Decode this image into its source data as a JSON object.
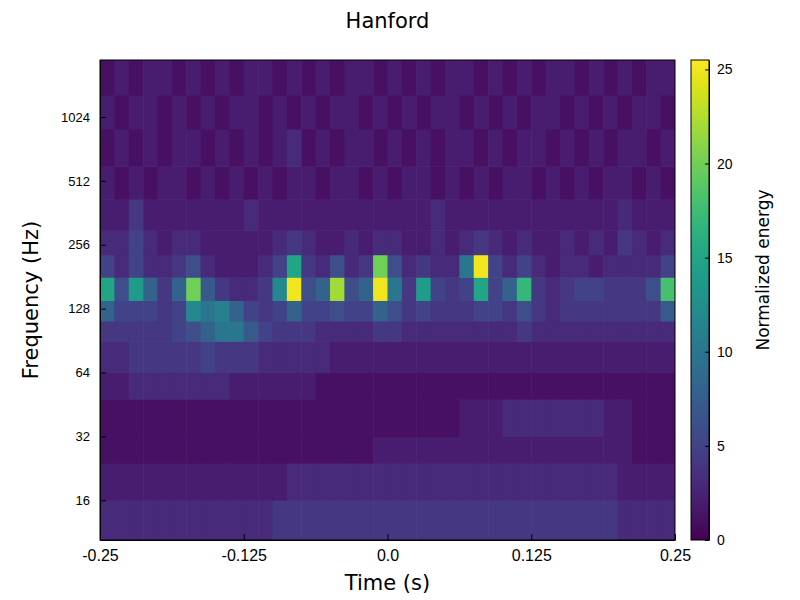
{
  "chart_data": {
    "type": "heatmap",
    "title": "Hanford",
    "x_label": "Time (s)",
    "y_label": "Frequency (Hz)",
    "colorbar_label": "Normalized energy",
    "color": "viridis",
    "log": "y",
    "xlim": [
      -0.25,
      0.25
    ],
    "xticks": [
      -0.25,
      -0.125,
      {
        "value": 0,
        "label": "0.0"
      },
      0.125,
      0.25
    ],
    "ylim": [
      10.4,
      1900
    ],
    "yticks": [
      16,
      32,
      64,
      128,
      256,
      512,
      1024
    ],
    "color_range": [
      0,
      25.5
    ],
    "color_ticks": [
      0,
      5,
      10,
      15,
      20,
      25
    ],
    "x_edges": [
      -0.25,
      -0.2375,
      -0.225,
      -0.2125,
      -0.2,
      -0.1875,
      -0.175,
      -0.1625,
      -0.15,
      -0.1375,
      -0.125,
      -0.1125,
      -0.1,
      -0.0875,
      -0.075,
      -0.0625,
      -0.05,
      -0.0375,
      -0.025,
      -0.0125,
      0,
      0.0125,
      0.025,
      0.0375,
      0.05,
      0.0625,
      0.075,
      0.0875,
      0.1,
      0.1125,
      0.125,
      0.1375,
      0.15,
      0.1625,
      0.175,
      0.1875,
      0.2,
      0.2125,
      0.225,
      0.2375,
      0.25
    ],
    "y_edges": [
      10.4,
      16,
      24,
      32,
      48,
      64,
      90,
      112,
      140,
      180,
      230,
      300,
      420,
      600,
      900,
      1300,
      1900
    ],
    "z": [
      [
        3,
        3,
        3,
        3,
        3,
        3,
        3,
        3,
        3,
        3,
        3,
        3,
        4,
        4,
        4,
        4,
        4,
        4,
        4,
        4,
        4,
        4,
        4,
        4,
        4,
        4,
        4,
        4,
        4,
        4,
        4,
        4,
        4,
        4,
        4,
        4,
        3,
        3,
        3,
        3
      ],
      [
        2,
        2,
        2,
        2,
        2,
        2,
        2,
        2,
        2,
        2,
        2,
        2,
        2,
        3,
        3,
        3,
        3,
        3,
        3,
        3,
        3,
        3,
        3,
        3,
        3,
        3,
        3,
        3,
        3,
        3,
        3,
        3,
        3,
        3,
        3,
        3,
        2,
        2,
        2,
        2
      ],
      [
        1,
        1,
        1,
        1,
        1,
        1,
        1,
        1,
        1,
        1,
        1,
        1,
        1,
        1,
        1,
        1,
        1,
        1,
        1,
        2,
        2,
        2,
        2,
        2,
        2,
        2,
        2,
        2,
        2,
        2,
        2,
        2,
        2,
        2,
        2,
        2,
        2,
        1,
        1,
        1
      ],
      [
        1,
        1,
        1,
        1,
        1,
        1,
        1,
        1,
        1,
        1,
        1,
        1,
        1,
        1,
        1,
        1,
        1,
        1,
        1,
        1,
        1,
        1,
        1,
        1,
        1,
        2,
        2,
        2,
        3,
        3,
        3,
        3,
        3,
        3,
        3,
        2,
        2,
        1,
        1,
        1
      ],
      [
        2,
        2,
        3,
        3,
        3,
        3,
        3,
        3,
        3,
        2,
        2,
        2,
        2,
        2,
        2,
        1,
        1,
        1,
        1,
        1,
        1,
        1,
        1,
        1,
        1,
        1,
        1,
        1,
        1,
        1,
        1,
        1,
        1,
        1,
        1,
        1,
        1,
        1,
        1,
        1
      ],
      [
        3,
        3,
        4,
        4,
        4,
        4,
        4,
        5,
        4,
        4,
        4,
        3,
        3,
        3,
        3,
        3,
        2,
        2,
        2,
        2,
        2,
        2,
        2,
        2,
        2,
        2,
        2,
        2,
        2,
        2,
        2,
        2,
        2,
        2,
        2,
        2,
        2,
        2,
        2,
        2
      ],
      [
        4,
        4,
        4,
        4,
        4,
        5,
        6,
        8,
        10,
        10,
        7,
        5,
        4,
        4,
        4,
        3,
        3,
        3,
        3,
        4,
        4,
        3,
        3,
        3,
        3,
        3,
        3,
        3,
        3,
        4,
        3,
        3,
        3,
        3,
        3,
        3,
        3,
        3,
        3,
        3
      ],
      [
        8,
        5,
        5,
        5,
        4,
        5,
        12,
        10,
        11,
        8,
        5,
        4,
        5,
        8,
        5,
        5,
        6,
        5,
        5,
        8,
        6,
        4,
        5,
        4,
        4,
        4,
        5,
        5,
        4,
        6,
        4,
        3,
        4,
        4,
        4,
        4,
        4,
        4,
        4,
        7
      ],
      [
        15,
        6,
        14,
        8,
        4,
        8,
        20,
        7,
        4,
        3,
        3,
        4,
        12,
        25,
        6,
        8,
        22,
        6,
        8,
        25,
        10,
        4,
        14,
        5,
        4,
        5,
        15,
        5,
        8,
        17,
        4,
        3,
        4,
        5,
        5,
        4,
        4,
        4,
        6,
        18
      ],
      [
        5,
        3,
        5,
        3,
        3,
        4,
        6,
        3,
        2,
        2,
        2,
        3,
        5,
        15,
        4,
        3,
        6,
        3,
        4,
        20,
        6,
        3,
        4,
        3,
        3,
        10,
        25,
        5,
        3,
        5,
        3,
        2,
        3,
        3,
        2,
        3,
        3,
        3,
        3,
        5
      ],
      [
        3,
        3,
        5,
        3,
        2,
        3,
        3,
        2,
        2,
        2,
        2,
        2,
        3,
        4,
        3,
        2,
        2,
        3,
        2,
        3,
        3,
        2,
        2,
        3,
        2,
        3,
        4,
        3,
        2,
        3,
        2,
        2,
        3,
        2,
        3,
        2,
        4,
        3,
        2,
        3
      ],
      [
        2,
        2,
        4,
        2,
        2,
        2,
        2,
        2,
        2,
        2,
        3,
        2,
        2,
        2,
        2,
        2,
        2,
        2,
        2,
        2,
        2,
        2,
        2,
        3,
        2,
        2,
        2,
        2,
        2,
        2,
        2,
        2,
        2,
        2,
        2,
        2,
        3,
        2,
        2,
        2
      ],
      [
        2,
        1,
        2,
        1,
        2,
        2,
        1,
        2,
        1,
        2,
        1,
        2,
        1,
        2,
        2,
        1,
        2,
        2,
        1,
        2,
        1,
        2,
        2,
        1,
        2,
        1,
        2,
        1,
        2,
        2,
        1,
        2,
        1,
        2,
        1,
        2,
        2,
        1,
        2,
        1
      ],
      [
        1,
        2,
        1,
        2,
        1,
        2,
        2,
        1,
        2,
        1,
        2,
        1,
        2,
        3,
        1,
        2,
        1,
        2,
        2,
        1,
        2,
        1,
        2,
        1,
        2,
        2,
        1,
        2,
        1,
        2,
        2,
        1,
        2,
        1,
        2,
        1,
        2,
        2,
        1,
        2
      ],
      [
        2,
        1,
        2,
        2,
        1,
        2,
        1,
        2,
        1,
        2,
        2,
        1,
        2,
        1,
        2,
        1,
        2,
        2,
        1,
        2,
        1,
        2,
        1,
        2,
        2,
        1,
        2,
        1,
        2,
        1,
        2,
        2,
        1,
        2,
        1,
        2,
        1,
        2,
        2,
        1
      ],
      [
        1,
        2,
        1,
        2,
        2,
        1,
        2,
        1,
        2,
        1,
        2,
        2,
        1,
        2,
        1,
        2,
        1,
        2,
        2,
        1,
        2,
        1,
        2,
        1,
        2,
        2,
        1,
        2,
        1,
        2,
        1,
        2,
        2,
        1,
        2,
        1,
        2,
        1,
        2,
        2
      ]
    ]
  }
}
